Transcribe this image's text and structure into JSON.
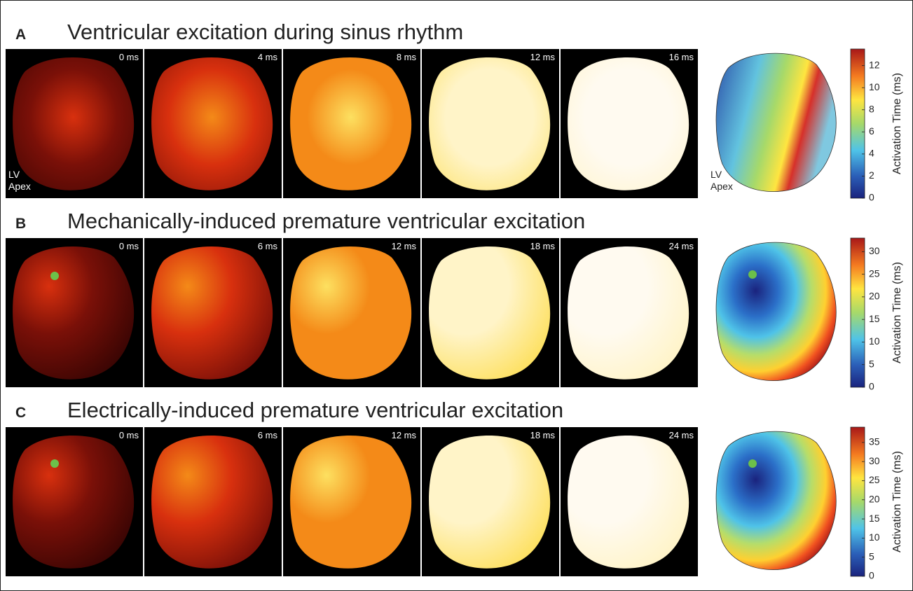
{
  "panels": [
    {
      "letter": "A",
      "title": "Ventricular excitation during sinus rhythm",
      "frame_labels": [
        "0 ms",
        "4 ms",
        "8 ms",
        "12 ms",
        "16 ms"
      ],
      "apex_label": [
        "LV",
        "Apex"
      ],
      "colorbar": {
        "label": "Activation Time (ms)",
        "lim": [
          0,
          13.5
        ],
        "ticks": [
          0,
          2,
          4,
          6,
          8,
          10,
          12
        ]
      }
    },
    {
      "letter": "B",
      "title": "Mechanically-induced premature ventricular excitation",
      "frame_labels": [
        "0 ms",
        "6 ms",
        "12 ms",
        "18 ms",
        "24 ms"
      ],
      "colorbar": {
        "label": "Activation Time (ms)",
        "lim": [
          0,
          33
        ],
        "ticks": [
          0,
          5,
          10,
          15,
          20,
          25,
          30
        ]
      }
    },
    {
      "letter": "C",
      "title": "Electrically-induced premature ventricular excitation",
      "frame_labels": [
        "0 ms",
        "6 ms",
        "12 ms",
        "18 ms",
        "24 ms"
      ],
      "colorbar": {
        "label": "Activation Time (ms)",
        "lim": [
          0,
          39
        ],
        "ticks": [
          0,
          5,
          10,
          15,
          20,
          25,
          30,
          35
        ]
      }
    }
  ]
}
